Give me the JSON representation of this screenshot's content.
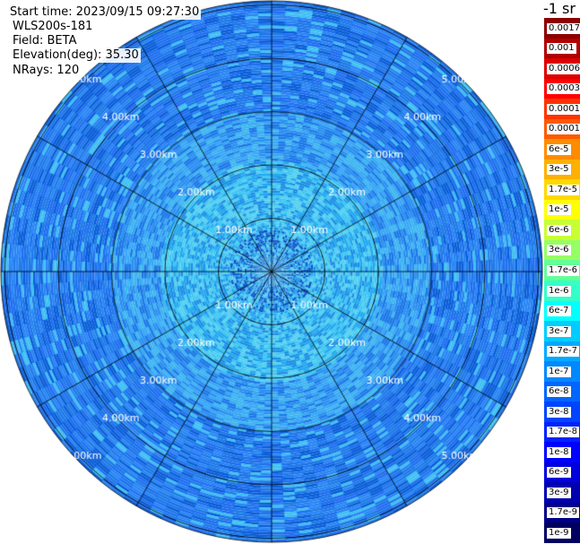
{
  "info": {
    "start_time": "Start time: 2023/09/15 09:27:30",
    "instrument": "WLS200s-181",
    "field": "Field: BETA",
    "elevation": "Elevation(deg): 35.30",
    "nrays": "NRays: 120"
  },
  "colorbar": {
    "title": "-1 sr",
    "labels": [
      "0.0017",
      "0.001",
      "0.0006",
      "0.0003",
      "0.00017",
      "0.0001",
      "6e-5",
      "3e-5",
      "1.7e-5",
      "1e-5",
      "6e-6",
      "3e-6",
      "1.7e-6",
      "1e-6",
      "6e-7",
      "3e-7",
      "1.7e-7",
      "1e-7",
      "6e-8",
      "3e-8",
      "1.7e-8",
      "1e-8",
      "6e-9",
      "3e-9",
      "1.7e-9",
      "1e-9"
    ],
    "colors": [
      "#8b0000",
      "#b00000",
      "#dd0000",
      "#ff0000",
      "#ff3300",
      "#ff5a00",
      "#ff8c00",
      "#ffb000",
      "#ffd800",
      "#ffff00",
      "#c8ff33",
      "#96ff64",
      "#64ff96",
      "#33ffc8",
      "#00ffff",
      "#00ccff",
      "#00aaff",
      "#0088ff",
      "#0066ff",
      "#0044ff",
      "#0022ff",
      "#0000ff",
      "#0000dd",
      "#0000b0",
      "#000088",
      "#000060"
    ]
  },
  "rings": {
    "labels": [
      "1.00km",
      "2.00km",
      "3.00km",
      "4.00km",
      "5.00km"
    ]
  },
  "plot": {
    "nrays": 120,
    "palette_low": [
      "#0a5ed8",
      "#1f6ff0",
      "#2a86f5",
      "#1e7ae8"
    ],
    "palette_mid": [
      "#2b8ff0",
      "#38a7f5",
      "#1c78e8",
      "#3fb6f0"
    ],
    "palette_near": [
      "#3fc6f2",
      "#22a8ef",
      "#55d0f0",
      "#1d8fe6"
    ]
  }
}
